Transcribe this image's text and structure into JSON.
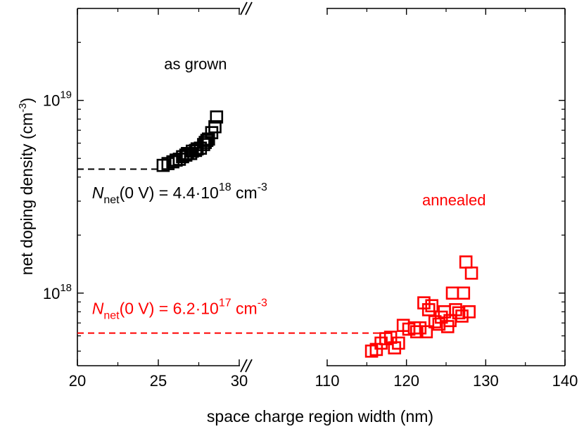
{
  "chart_data": {
    "type": "scatter",
    "xlabel": "space charge region width (nm)",
    "ylabel": "net doping density (cm",
    "ylabel_sup": "-3",
    "ylabel_close": ")",
    "xscale": "broken-linear",
    "x_segments": [
      {
        "xlim": [
          20,
          30
        ],
        "ticks": [
          20,
          25,
          30
        ],
        "tick_labels": [
          "20",
          "25",
          "30"
        ]
      },
      {
        "xlim": [
          110,
          140
        ],
        "ticks": [
          110,
          120,
          130,
          140
        ],
        "tick_labels": [
          "110",
          "120",
          "130",
          "140"
        ]
      }
    ],
    "x_break_marks": "//",
    "yscale": "log",
    "ylim": [
      4.2e+17,
      3e+19
    ],
    "y_ticks": [
      {
        "value": 1e+18,
        "base": "10",
        "exp": "18"
      },
      {
        "value": 1e+19,
        "base": "10",
        "exp": "19"
      }
    ],
    "grid": false,
    "series": [
      {
        "name": "as grown",
        "color": "#000000",
        "marker": "open-square",
        "x": [
          25.3,
          25.6,
          25.9,
          26.1,
          26.3,
          26.5,
          26.7,
          26.8,
          27.0,
          27.1,
          27.3,
          27.4,
          27.6,
          27.8,
          27.9,
          28.0,
          28.1,
          28.3,
          28.5,
          28.6
        ],
        "y": [
          4.6e+18,
          4.7e+18,
          4.8e+18,
          4.9e+18,
          4.95e+18,
          5.1e+18,
          5.2e+18,
          5.3e+18,
          5.3e+18,
          5.45e+18,
          5.5e+18,
          5.6e+18,
          5.65e+18,
          5.9e+18,
          6.05e+18,
          6.2e+18,
          6.3e+18,
          6.8e+18,
          7.3e+18,
          8.2e+18
        ]
      },
      {
        "name": "annealed",
        "color": "#ff0000",
        "marker": "open-square",
        "x": [
          115.6,
          116.2,
          116.8,
          117.4,
          118.0,
          118.5,
          119.0,
          119.6,
          120.3,
          121.0,
          121.3,
          121.7,
          122.2,
          122.5,
          122.8,
          123.2,
          123.6,
          124.1,
          124.4,
          124.8,
          125.2,
          125.5,
          125.8,
          126.2,
          126.6,
          127.0,
          127.2,
          127.5,
          127.9,
          128.2
        ],
        "y": [
          5e+17,
          5.1e+17,
          5.5e+17,
          5.8e+17,
          5.9e+17,
          5.2e+17,
          5.5e+17,
          6.8e+17,
          6.5e+17,
          6.6e+17,
          6.3e+17,
          6.6e+17,
          8.9e+17,
          6.3e+17,
          8.2e+17,
          8.6e+17,
          7.1e+17,
          6.9e+17,
          7.5e+17,
          8e+17,
          6.7e+17,
          7.2e+17,
          1e+18,
          8.2e+17,
          7.9e+17,
          7.6e+17,
          1e+18,
          1.45e+18,
          8e+17,
          1.27e+18
        ]
      }
    ],
    "reference_lines": [
      {
        "color": "#000000",
        "y": 4.4e+18,
        "x_from": 20,
        "x_to": 25.3,
        "style": "dashed"
      },
      {
        "color": "#ff0000",
        "y": 6.2e+17,
        "x_from": 20,
        "x_to": 117,
        "style": "dashed"
      }
    ],
    "annotations": [
      {
        "id": "as-grown-label",
        "text": "as grown",
        "color": "#000000",
        "x": 27.3,
        "y": 1.45e+19
      },
      {
        "id": "annealed-label",
        "text": "annealed",
        "color": "#ff0000",
        "x": 126,
        "y": 2.85e+18
      },
      {
        "id": "black-nnet-label",
        "color": "#000000",
        "x": 20.9,
        "y": 3.1e+18,
        "parts": {
          "n": "N",
          "sub": "net",
          "mid": "(0 V) = 4.4·10",
          "sup1": "18",
          "unit": " cm",
          "sup2": "-3"
        }
      },
      {
        "id": "red-nnet-label",
        "color": "#ff0000",
        "x": 20.9,
        "y": 7.8e+17,
        "parts": {
          "n": "N",
          "sub": "net",
          "mid": "(0 V) = 6.2·10",
          "sup1": "17",
          "unit": " cm",
          "sup2": "-3"
        }
      }
    ]
  }
}
